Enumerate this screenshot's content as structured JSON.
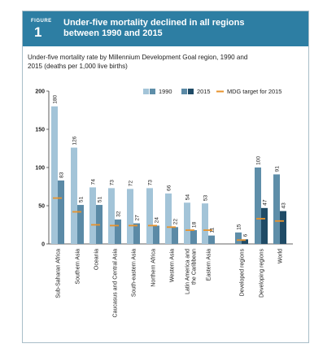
{
  "figure": {
    "label": "FIGURE",
    "number": "1",
    "title_line1": "Under-five mortality declined in all regions",
    "title_line2": "between 1990 and 2015",
    "subtitle_line1": "Under-five mortality rate by Millennium Development Goal region, 1990 and",
    "subtitle_line2": "2015 (deaths per 1,000 live births)"
  },
  "colors": {
    "header_bg": "#2d7ea3",
    "bar_1990_light": "#a3c4d8",
    "bar_1990_dark": "#5e8ea9",
    "bar_2015_light": "#5b8aa6",
    "bar_2015_dark": "#1f4b66",
    "target": "#e8932c"
  },
  "chart_data": {
    "type": "bar",
    "ylim": [
      0,
      200
    ],
    "yticks": [
      0,
      50,
      100,
      150,
      200
    ],
    "grid": false,
    "legend_position": "top-right",
    "legend": [
      {
        "key": "1990",
        "label": "1990"
      },
      {
        "key": "2015",
        "label": "2015"
      },
      {
        "key": "target",
        "label": "MDG target for 2015"
      }
    ],
    "categories": [
      {
        "name": "Sub-Saharan Africa",
        "lines": [
          "Sub-Saharan Africa"
        ],
        "v1990": 180,
        "v2015": 83,
        "target": 60,
        "group": "developing_region"
      },
      {
        "name": "Southern Asia",
        "lines": [
          "Southern Asia"
        ],
        "v1990": 126,
        "v2015": 51,
        "target": 42,
        "group": "developing_region"
      },
      {
        "name": "Oceania",
        "lines": [
          "Oceania"
        ],
        "v1990": 74,
        "v2015": 51,
        "target": 25,
        "group": "developing_region"
      },
      {
        "name": "Caucasus and Central Asia",
        "lines": [
          "Caucasus and Central Asia"
        ],
        "v1990": 73,
        "v2015": 32,
        "target": 24,
        "group": "developing_region"
      },
      {
        "name": "South-eastern Asia",
        "lines": [
          "South-eastern Asia"
        ],
        "v1990": 72,
        "v2015": 27,
        "target": 24,
        "group": "developing_region"
      },
      {
        "name": "Northern Africa",
        "lines": [
          "Northern Africa"
        ],
        "v1990": 73,
        "v2015": 24,
        "target": 24,
        "group": "developing_region"
      },
      {
        "name": "Western Asia",
        "lines": [
          "Western Asia"
        ],
        "v1990": 66,
        "v2015": 22,
        "target": 22,
        "group": "developing_region"
      },
      {
        "name": "Latin America and the Caribbean",
        "lines": [
          "Latin America and",
          "the Caribbean"
        ],
        "v1990": 54,
        "v2015": 18,
        "target": 18,
        "group": "developing_region"
      },
      {
        "name": "Eastern Asia",
        "lines": [
          "Eastern Asia"
        ],
        "v1990": 53,
        "v2015": 11,
        "target": 18,
        "group": "developing_region"
      },
      {
        "name": "Developed regions",
        "lines": [
          "Developed regions"
        ],
        "v1990": 15,
        "v2015": 6,
        "target": 5,
        "group": "aggregate"
      },
      {
        "name": "Developing regions",
        "lines": [
          "Developing regions"
        ],
        "v1990": 100,
        "v2015": 47,
        "target": 33,
        "group": "aggregate"
      },
      {
        "name": "World",
        "lines": [
          "World"
        ],
        "v1990": 91,
        "v2015": 43,
        "target": 30,
        "group": "aggregate"
      }
    ]
  }
}
